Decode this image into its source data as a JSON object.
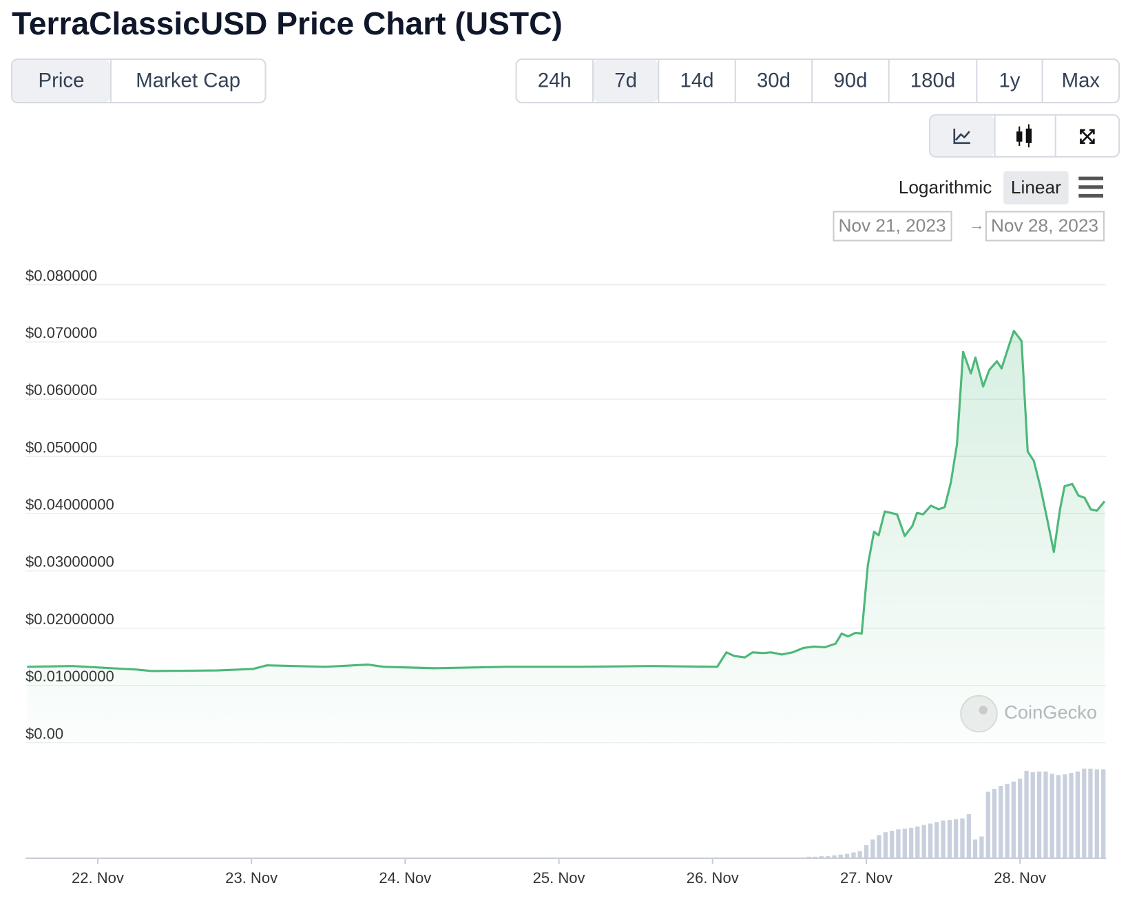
{
  "header": {
    "title": "TerraClassicUSD Price Chart (USTC)"
  },
  "tabs": [
    "Price",
    "Market Cap"
  ],
  "active_tab": 0,
  "ranges": [
    "24h",
    "7d",
    "14d",
    "30d",
    "90d",
    "180d",
    "1y",
    "Max"
  ],
  "active_range": 1,
  "scale_options": [
    "Logarithmic",
    "Linear"
  ],
  "active_scale": 1,
  "date_range": {
    "from": "Nov 21, 2023",
    "to": "Nov 28, 2023"
  },
  "watermark": "CoinGecko",
  "chart_data": {
    "type": "area",
    "color": "#4cb87a",
    "x": [
      21.54,
      21.835,
      22.26,
      22.35,
      22.78,
      23.01,
      23.1,
      23.48,
      23.76,
      23.86,
      24.19,
      24.66,
      25.13,
      25.6,
      26.03,
      26.09,
      26.14,
      26.21,
      26.26,
      26.33,
      26.38,
      26.45,
      26.52,
      26.59,
      26.66,
      26.73,
      26.8,
      26.84,
      26.88,
      26.93,
      26.97,
      27.01,
      27.05,
      27.08,
      27.12,
      27.2,
      27.25,
      27.3,
      27.33,
      27.37,
      27.42,
      27.47,
      27.51,
      27.55,
      27.59,
      27.63,
      27.68,
      27.71,
      27.76,
      27.8,
      27.85,
      27.88,
      27.93,
      27.96,
      28.01,
      28.05,
      28.09,
      28.13,
      28.18,
      28.22,
      28.26,
      28.29,
      28.34,
      28.38,
      28.42,
      28.46,
      28.5,
      28.55
    ],
    "values": [
      0.01325,
      0.01338,
      0.01275,
      0.0125,
      0.01262,
      0.01287,
      0.0135,
      0.01325,
      0.01363,
      0.01325,
      0.013,
      0.01325,
      0.01325,
      0.01338,
      0.01325,
      0.01577,
      0.01514,
      0.01489,
      0.01577,
      0.01565,
      0.01577,
      0.0154,
      0.01577,
      0.01653,
      0.01678,
      0.01666,
      0.01729,
      0.01905,
      0.01855,
      0.01918,
      0.01905,
      0.03104,
      0.03685,
      0.03621,
      0.04038,
      0.03987,
      0.03609,
      0.03785,
      0.04013,
      0.03987,
      0.04139,
      0.04076,
      0.04114,
      0.04543,
      0.05211,
      0.06826,
      0.06448,
      0.06726,
      0.06221,
      0.06511,
      0.06662,
      0.06536,
      0.06953,
      0.07192,
      0.07016,
      0.05085,
      0.04921,
      0.04492,
      0.03861,
      0.03331,
      0.04076,
      0.0448,
      0.04517,
      0.04315,
      0.04278,
      0.04076,
      0.0405,
      0.04215
    ],
    "xlim": [
      21.53,
      28.56
    ],
    "xticks": [
      {
        "value": 22,
        "label": "22. Nov"
      },
      {
        "value": 23,
        "label": "23. Nov"
      },
      {
        "value": 24,
        "label": "24. Nov"
      },
      {
        "value": 25,
        "label": "25. Nov"
      },
      {
        "value": 26,
        "label": "26. Nov"
      },
      {
        "value": 27,
        "label": "27. Nov"
      },
      {
        "value": 28,
        "label": "28. Nov"
      }
    ],
    "ylim": [
      0,
      0.08
    ],
    "yticks": [
      {
        "value": 0,
        "label": "$0.00"
      },
      {
        "value": 0.01,
        "label": "$0.01000000"
      },
      {
        "value": 0.02,
        "label": "$0.02000000"
      },
      {
        "value": 0.03,
        "label": "$0.03000000"
      },
      {
        "value": 0.04,
        "label": "$0.04000000"
      },
      {
        "value": 0.05,
        "label": "$0.050000"
      },
      {
        "value": 0.06,
        "label": "$0.060000"
      },
      {
        "value": 0.07,
        "label": "$0.070000"
      },
      {
        "value": 0.08,
        "label": "$0.080000"
      }
    ],
    "grid": true,
    "volume": {
      "color": "#c9d0dd",
      "ylim": [
        0,
        130
      ],
      "x": [
        26.625,
        26.667,
        26.708,
        26.75,
        26.792,
        26.833,
        26.875,
        26.917,
        26.958,
        27,
        27.042,
        27.083,
        27.125,
        27.167,
        27.208,
        27.25,
        27.292,
        27.333,
        27.375,
        27.417,
        27.458,
        27.5,
        27.542,
        27.583,
        27.625,
        27.667,
        27.708,
        27.75,
        27.792,
        27.833,
        27.875,
        27.917,
        27.958,
        28,
        28.042,
        28.083,
        28.125,
        28.167,
        28.208,
        28.25,
        28.292,
        28.333,
        28.375,
        28.417,
        28.458,
        28.5,
        28.542
      ],
      "values": [
        2,
        2,
        3,
        3,
        4,
        5,
        6,
        8,
        10,
        18,
        26,
        32,
        36,
        38,
        40,
        41,
        42,
        44,
        46,
        48,
        50,
        52,
        53,
        54,
        55,
        61,
        26,
        30,
        92,
        96,
        100,
        103,
        106,
        110,
        121,
        119,
        120,
        120,
        117,
        115,
        116,
        118,
        120,
        124,
        124,
        123,
        123
      ]
    }
  }
}
